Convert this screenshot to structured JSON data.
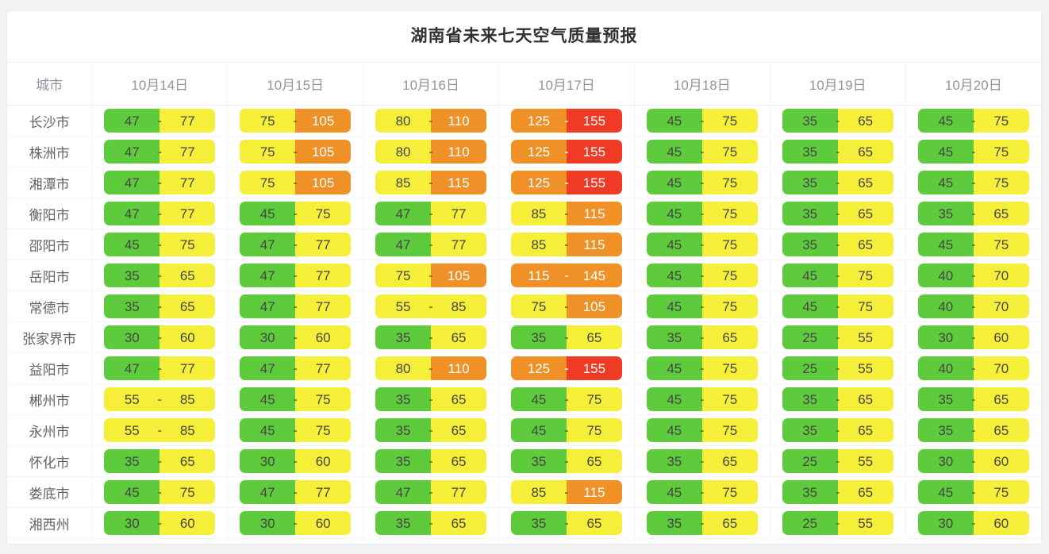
{
  "title": "湖南省未来七天空气质量预报",
  "aqi_levels": [
    {
      "max": 50,
      "bg": "#5ecb3c",
      "text": "#454545"
    },
    {
      "max": 100,
      "bg": "#f5ef39",
      "text": "#454545"
    },
    {
      "max": 150,
      "bg": "#ef9127",
      "text": "#ffffff"
    },
    {
      "max": 999,
      "bg": "#ef3b25",
      "text": "#ffffff"
    }
  ],
  "chart_data": {
    "type": "table",
    "title": "湖南省未来七天空气质量预报",
    "columns": [
      "城市",
      "10月14日",
      "10月15日",
      "10月16日",
      "10月17日",
      "10月18日",
      "10月19日",
      "10月20日"
    ],
    "rows": [
      {
        "city": "长沙市",
        "ranges": [
          [
            47,
            77
          ],
          [
            75,
            105
          ],
          [
            80,
            110
          ],
          [
            125,
            155
          ],
          [
            45,
            75
          ],
          [
            35,
            65
          ],
          [
            45,
            75
          ]
        ]
      },
      {
        "city": "株洲市",
        "ranges": [
          [
            47,
            77
          ],
          [
            75,
            105
          ],
          [
            80,
            110
          ],
          [
            125,
            155
          ],
          [
            45,
            75
          ],
          [
            35,
            65
          ],
          [
            45,
            75
          ]
        ]
      },
      {
        "city": "湘潭市",
        "ranges": [
          [
            47,
            77
          ],
          [
            75,
            105
          ],
          [
            85,
            115
          ],
          [
            125,
            155
          ],
          [
            45,
            75
          ],
          [
            35,
            65
          ],
          [
            45,
            75
          ]
        ]
      },
      {
        "city": "衡阳市",
        "ranges": [
          [
            47,
            77
          ],
          [
            45,
            75
          ],
          [
            47,
            77
          ],
          [
            85,
            115
          ],
          [
            45,
            75
          ],
          [
            35,
            65
          ],
          [
            35,
            65
          ]
        ]
      },
      {
        "city": "邵阳市",
        "ranges": [
          [
            45,
            75
          ],
          [
            47,
            77
          ],
          [
            47,
            77
          ],
          [
            85,
            115
          ],
          [
            45,
            75
          ],
          [
            35,
            65
          ],
          [
            45,
            75
          ]
        ]
      },
      {
        "city": "岳阳市",
        "ranges": [
          [
            35,
            65
          ],
          [
            47,
            77
          ],
          [
            75,
            105
          ],
          [
            115,
            145
          ],
          [
            45,
            75
          ],
          [
            45,
            75
          ],
          [
            40,
            70
          ]
        ]
      },
      {
        "city": "常德市",
        "ranges": [
          [
            35,
            65
          ],
          [
            47,
            77
          ],
          [
            55,
            85
          ],
          [
            75,
            105
          ],
          [
            45,
            75
          ],
          [
            45,
            75
          ],
          [
            40,
            70
          ]
        ]
      },
      {
        "city": "张家界市",
        "ranges": [
          [
            30,
            60
          ],
          [
            30,
            60
          ],
          [
            35,
            65
          ],
          [
            35,
            65
          ],
          [
            35,
            65
          ],
          [
            25,
            55
          ],
          [
            30,
            60
          ]
        ]
      },
      {
        "city": "益阳市",
        "ranges": [
          [
            47,
            77
          ],
          [
            47,
            77
          ],
          [
            80,
            110
          ],
          [
            125,
            155
          ],
          [
            45,
            75
          ],
          [
            25,
            55
          ],
          [
            40,
            70
          ]
        ]
      },
      {
        "city": "郴州市",
        "ranges": [
          [
            55,
            85
          ],
          [
            45,
            75
          ],
          [
            35,
            65
          ],
          [
            45,
            75
          ],
          [
            45,
            75
          ],
          [
            35,
            65
          ],
          [
            35,
            65
          ]
        ]
      },
      {
        "city": "永州市",
        "ranges": [
          [
            55,
            85
          ],
          [
            45,
            75
          ],
          [
            35,
            65
          ],
          [
            45,
            75
          ],
          [
            45,
            75
          ],
          [
            35,
            65
          ],
          [
            35,
            65
          ]
        ]
      },
      {
        "city": "怀化市",
        "ranges": [
          [
            35,
            65
          ],
          [
            30,
            60
          ],
          [
            35,
            65
          ],
          [
            35,
            65
          ],
          [
            35,
            65
          ],
          [
            25,
            55
          ],
          [
            30,
            60
          ]
        ]
      },
      {
        "city": "娄底市",
        "ranges": [
          [
            45,
            75
          ],
          [
            47,
            77
          ],
          [
            47,
            77
          ],
          [
            85,
            115
          ],
          [
            45,
            75
          ],
          [
            35,
            65
          ],
          [
            45,
            75
          ]
        ]
      },
      {
        "city": "湘西州",
        "ranges": [
          [
            30,
            60
          ],
          [
            30,
            60
          ],
          [
            35,
            65
          ],
          [
            35,
            65
          ],
          [
            35,
            65
          ],
          [
            25,
            55
          ],
          [
            30,
            60
          ]
        ]
      }
    ]
  }
}
